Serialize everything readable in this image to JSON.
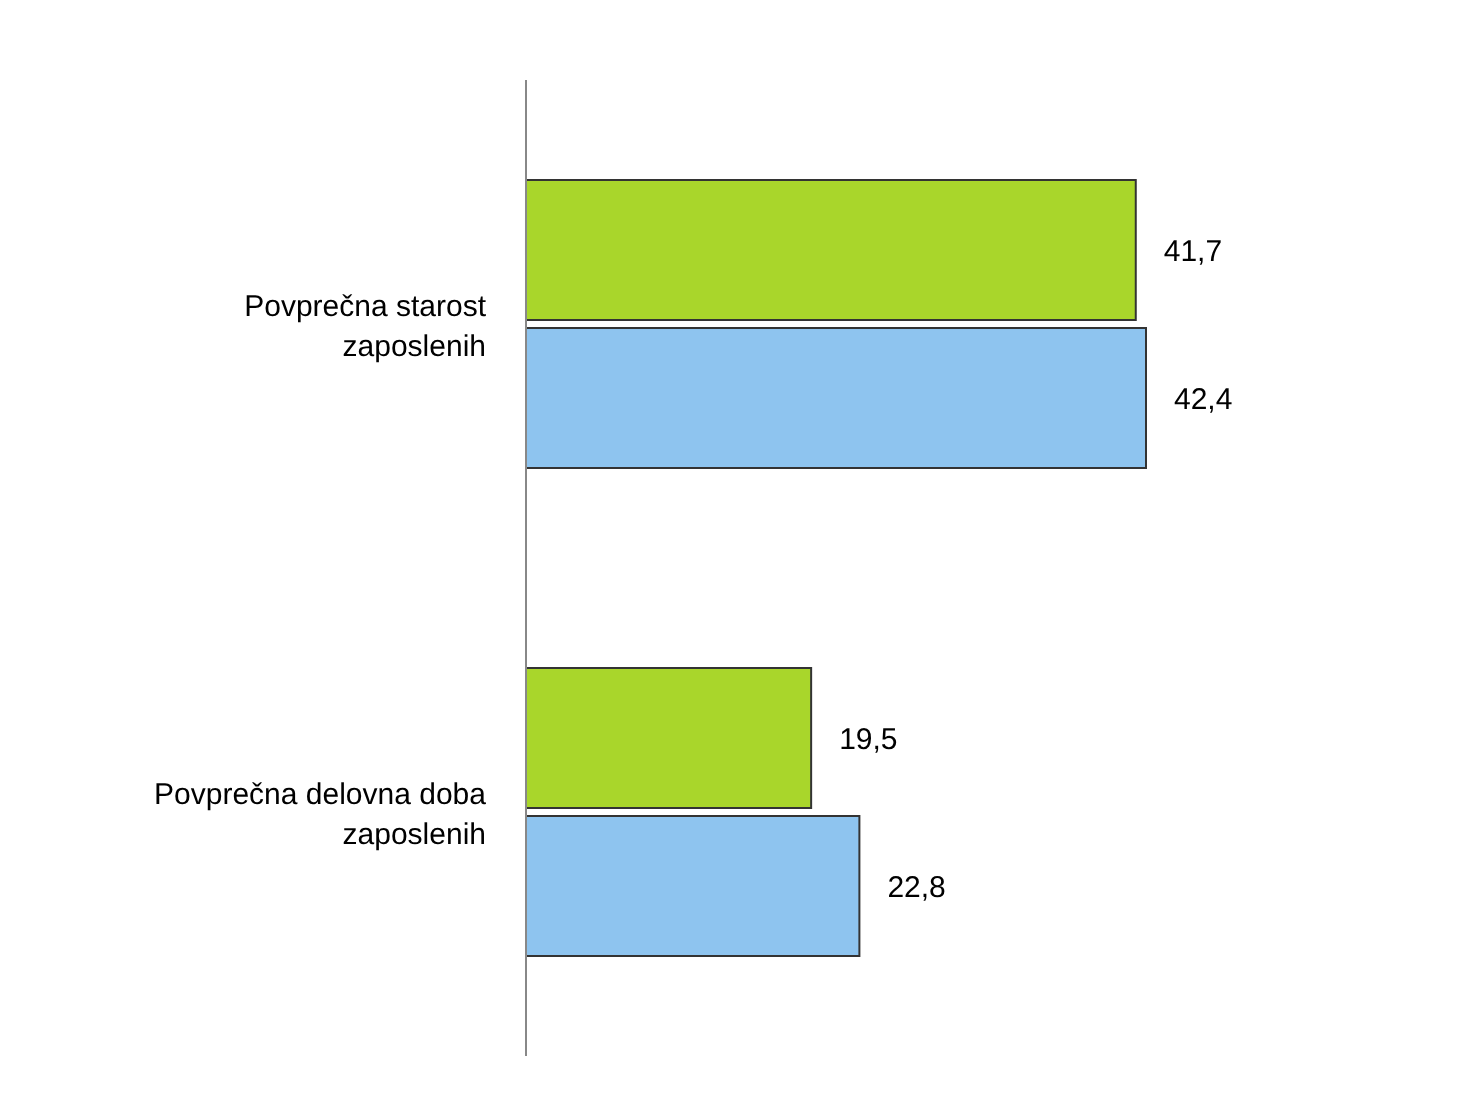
{
  "chart_data": {
    "type": "bar",
    "orientation": "horizontal",
    "categories": [
      "Povprečna starost zaposlenih",
      "Povprečna delovna doba zaposlenih"
    ],
    "series": [
      {
        "color": "#a9d62b",
        "values": [
          41.7,
          19.5
        ],
        "value_labels": [
          "41,7",
          "19,5"
        ]
      },
      {
        "color": "#8ec4ef",
        "values": [
          42.4,
          22.8
        ],
        "value_labels": [
          "42,4",
          "22,8"
        ]
      }
    ],
    "grid": false,
    "legend": false
  }
}
